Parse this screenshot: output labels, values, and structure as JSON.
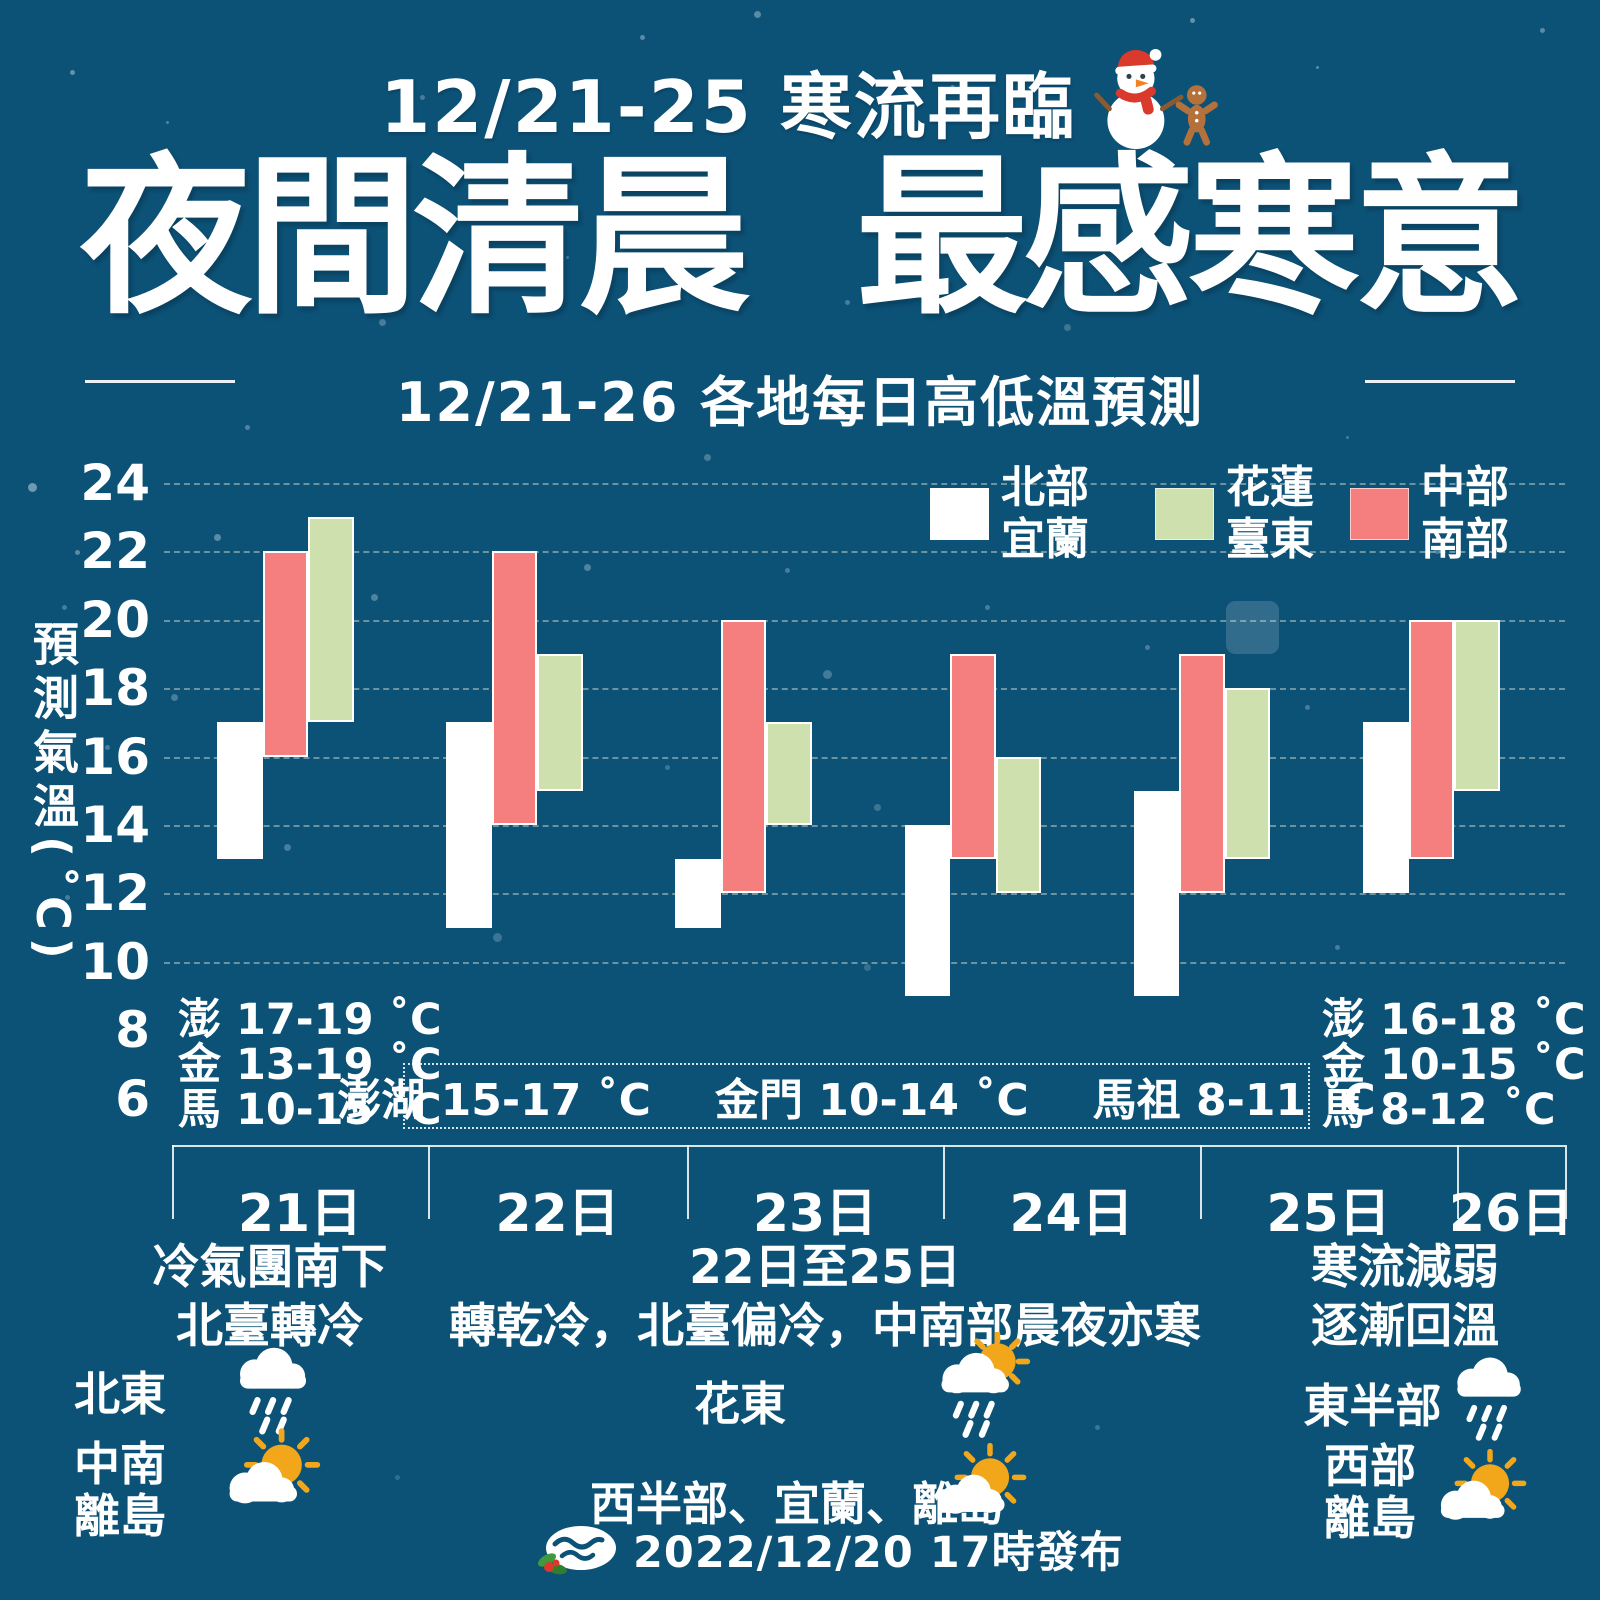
{
  "header": {
    "top_title": "12/21-25 寒流再臨",
    "main_title_left": "夜間清晨",
    "main_title_right": "最感寒意",
    "subtitle": "12/21-26 各地每日高低溫預測"
  },
  "legend": {
    "items": [
      {
        "line1": "北部",
        "line2": "宜蘭",
        "color": "#ffffff"
      },
      {
        "line1": "花蓮",
        "line2": "臺東",
        "color": "#cde0ad"
      },
      {
        "line1": "中部",
        "line2": "南部",
        "color": "#f57f7f"
      }
    ]
  },
  "chart_data": {
    "type": "bar",
    "subtype": "floating-range-columns",
    "title": "12/21-26 各地每日高低溫預測",
    "ylabel": "預測氣溫(˚C)",
    "ylim": [
      6,
      24
    ],
    "yticks": [
      24,
      22,
      20,
      18,
      16,
      14,
      12,
      10,
      8,
      6
    ],
    "gridline_values": [
      24,
      22,
      20,
      18,
      16,
      14,
      12,
      10
    ],
    "grid": "dashed",
    "legend_position": "top-right",
    "categories": [
      "21日",
      "22日",
      "23日",
      "24日",
      "25日",
      "26日"
    ],
    "series": [
      {
        "name": "北部宜蘭",
        "color": "#ffffff",
        "ranges": [
          [
            13,
            17
          ],
          [
            11,
            17
          ],
          [
            11,
            13
          ],
          [
            9,
            14
          ],
          [
            9,
            15
          ],
          [
            12,
            17
          ]
        ]
      },
      {
        "name": "中部南部",
        "color": "#f57f7f",
        "ranges": [
          [
            16,
            22
          ],
          [
            14,
            22
          ],
          [
            12,
            20
          ],
          [
            13,
            19
          ],
          [
            12,
            19
          ],
          [
            13,
            20
          ]
        ]
      },
      {
        "name": "花蓮臺東",
        "color": "#cde0ad",
        "ranges": [
          [
            17,
            23
          ],
          [
            15,
            19
          ],
          [
            14,
            17
          ],
          [
            12,
            16
          ],
          [
            13,
            18
          ],
          [
            15,
            20
          ]
        ]
      }
    ]
  },
  "annotations": {
    "left_islands": [
      "澎 17-19 ˚C",
      "金 13-19 ˚C",
      "馬 10-15 ˚C"
    ],
    "box_islands": [
      "澎湖 15-17 ˚C",
      "金門 10-14 ˚C",
      "馬祖 8-11 ˚C"
    ],
    "right_islands": [
      "澎 16-18 ˚C",
      "金 10-15 ˚C",
      "馬 8-12 ˚C"
    ]
  },
  "notes": {
    "left": [
      "冷氣團南下",
      "北臺轉冷"
    ],
    "middle": [
      "22日至25日",
      "轉乾冷，北臺偏冷，中南部晨夜亦寒"
    ],
    "right": [
      "寒流減弱",
      "逐漸回溫"
    ]
  },
  "weather": {
    "north_east": {
      "label": "北東",
      "icon": "rain-cloud"
    },
    "central_south": {
      "label_line1": "中南",
      "label_line2": "離島",
      "icon": "sun-cloud"
    },
    "hua_east": {
      "label": "花東",
      "icon": "sun-cloud-rain"
    },
    "west_yilan_islands": {
      "label": "西半部、宜蘭、離島",
      "icon": "sun-cloud"
    },
    "east_half": {
      "label": "東半部",
      "icon": "rain-cloud"
    },
    "west_islands": {
      "label_line1": "西部",
      "label_line2": "離島",
      "icon": "sun-cloud"
    }
  },
  "footer": {
    "issued": "2022/12/20 17時發布"
  },
  "colors": {
    "background": "#0c5176",
    "bar_north_yilan": "#ffffff",
    "bar_central_south": "#f57f7f",
    "bar_hualien_taitung": "#cde0ad",
    "sun": "#f2a71b",
    "accent_red": "#d93a2b"
  }
}
